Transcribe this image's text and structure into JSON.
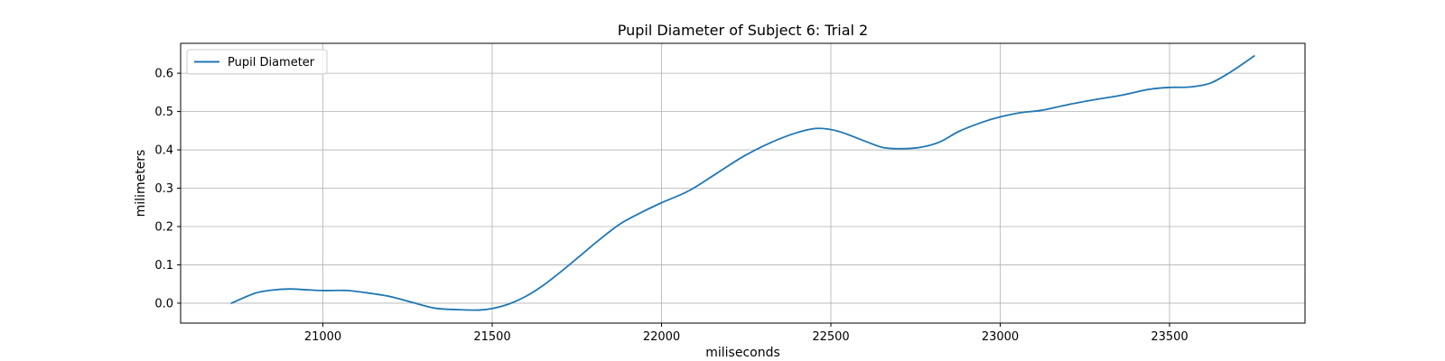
{
  "chart_data": {
    "type": "line",
    "title": "Pupil Diameter of Subject 6: Trial 2",
    "xlabel": "miliseconds",
    "ylabel": "milimeters",
    "xlim": [
      20580,
      23900
    ],
    "ylim": [
      -0.052,
      0.678
    ],
    "xticks": [
      21000,
      21500,
      22000,
      22500,
      23000,
      23500
    ],
    "yticks": [
      0.0,
      0.1,
      0.2,
      0.3,
      0.4,
      0.5,
      0.6
    ],
    "ytick_labels": [
      "0.0",
      "0.1",
      "0.2",
      "0.3",
      "0.4",
      "0.5",
      "0.6"
    ],
    "grid": true,
    "legend_position": "upper left",
    "series": [
      {
        "name": "Pupil Diameter",
        "color": "#1f77b4",
        "x": [
          20730,
          20800,
          20850,
          20900,
          20950,
          21000,
          21070,
          21130,
          21200,
          21260,
          21330,
          21400,
          21460,
          21500,
          21550,
          21600,
          21650,
          21700,
          21760,
          21820,
          21880,
          21950,
          22000,
          22080,
          22160,
          22240,
          22320,
          22400,
          22460,
          22520,
          22600,
          22650,
          22700,
          22760,
          22820,
          22880,
          22950,
          23000,
          23060,
          23120,
          23200,
          23280,
          23360,
          23440,
          23500,
          23560,
          23620,
          23680,
          23750
        ],
        "y": [
          0.0,
          0.026,
          0.034,
          0.037,
          0.035,
          0.033,
          0.033,
          0.027,
          0.017,
          0.003,
          -0.013,
          -0.017,
          -0.018,
          -0.014,
          -0.002,
          0.018,
          0.046,
          0.08,
          0.124,
          0.168,
          0.208,
          0.241,
          0.262,
          0.293,
          0.337,
          0.382,
          0.418,
          0.445,
          0.456,
          0.449,
          0.423,
          0.407,
          0.403,
          0.406,
          0.42,
          0.449,
          0.473,
          0.486,
          0.497,
          0.503,
          0.518,
          0.531,
          0.543,
          0.558,
          0.563,
          0.564,
          0.574,
          0.603,
          0.645
        ]
      }
    ]
  }
}
